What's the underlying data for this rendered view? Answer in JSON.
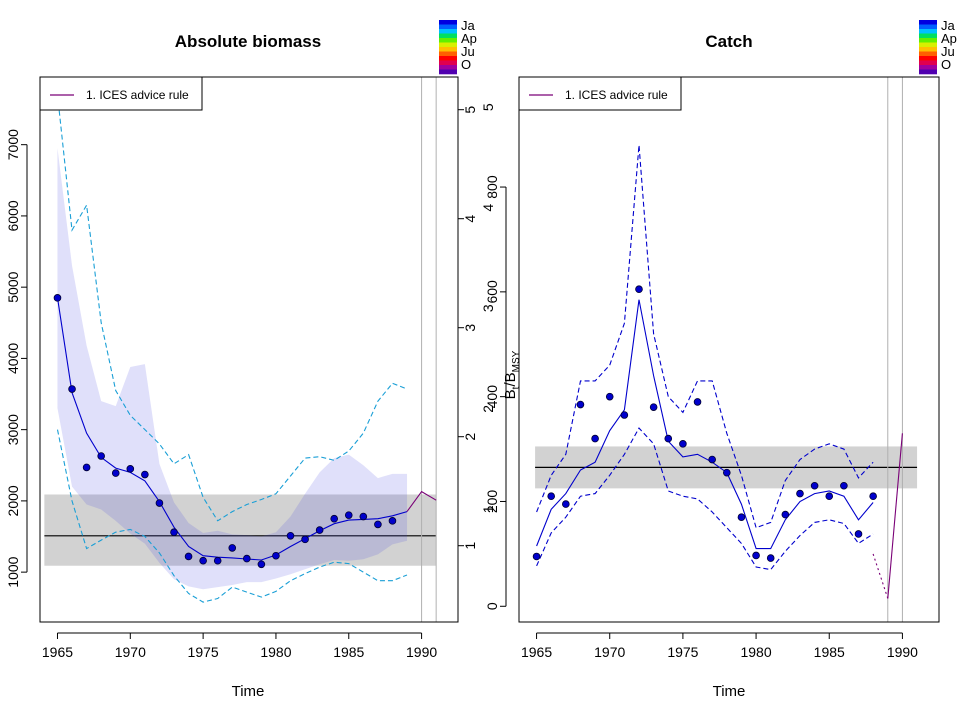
{
  "chart_data": [
    {
      "type": "line",
      "title": "Absolute biomass",
      "xlabel": "Time",
      "ylabel": "",
      "secondary_ylabel": "",
      "xlim": [
        1963.8,
        1992.5
      ],
      "ylim": [
        300,
        7950
      ],
      "secondary_ylim": [
        0.3,
        5.3
      ],
      "x_ticks": [
        1965,
        1970,
        1975,
        1980,
        1985,
        1990
      ],
      "y_ticks": [
        1000,
        2000,
        3000,
        4000,
        5000,
        6000,
        7000
      ],
      "secondary_y_ticks": [
        1,
        2,
        3,
        4,
        5
      ],
      "grid": false,
      "legend": {
        "position": "top-left",
        "entries": [
          {
            "label": "1. ICES advice rule",
            "color": "#7a0077"
          }
        ]
      },
      "reference": {
        "value": 1510,
        "band": [
          1090,
          2090
        ],
        "x_range": [
          1964.1,
          1991.0
        ]
      },
      "vertical_lines": [
        1990,
        1991
      ],
      "observed_x": [
        1965,
        1966,
        1967,
        1968,
        1969,
        1970,
        1971,
        1972,
        1973,
        1974,
        1975,
        1976,
        1977,
        1978,
        1979,
        1980,
        1981,
        1982,
        1983,
        1984,
        1985,
        1986,
        1987,
        1988
      ],
      "observed_y": [
        4850,
        3570,
        2470,
        2630,
        2390,
        2450,
        2370,
        1970,
        1560,
        1220,
        1160,
        1160,
        1340,
        1190,
        1110,
        1230,
        1510,
        1460,
        1590,
        1750,
        1800,
        1780,
        1670,
        1720
      ],
      "series": [
        {
          "name": "",
          "style": "solid",
          "color": "#0000cc",
          "x": [
            1965,
            1966,
            1967,
            1968,
            1969,
            1970,
            1971,
            1972,
            1973,
            1974,
            1975,
            1976,
            1977,
            1978,
            1979,
            1980,
            1981,
            1982,
            1983,
            1984,
            1985,
            1986,
            1987,
            1988,
            1989
          ],
          "values": [
            4850,
            3520,
            2950,
            2610,
            2460,
            2400,
            2280,
            1990,
            1630,
            1360,
            1230,
            1210,
            1200,
            1185,
            1170,
            1240,
            1360,
            1470,
            1580,
            1680,
            1730,
            1740,
            1750,
            1790,
            1850
          ]
        },
        {
          "name": "",
          "style": "solid",
          "color": "#7a0077",
          "x": [
            1989,
            1990,
            1991
          ],
          "values": [
            1850,
            2130,
            2010
          ]
        },
        {
          "name": "",
          "style": "dashed",
          "color": "#1a9fd6",
          "x": [
            1965,
            1966,
            1967,
            1968,
            1969,
            1970,
            1971,
            1972,
            1973,
            1974,
            1975,
            1976,
            1977,
            1978,
            1979,
            1980,
            1981,
            1982,
            1983,
            1984,
            1985,
            1986,
            1987,
            1988,
            1989
          ],
          "values": [
            7700,
            5800,
            6150,
            4500,
            3550,
            3200,
            3000,
            2800,
            2520,
            2650,
            2050,
            1720,
            1850,
            1950,
            2020,
            2100,
            2350,
            2600,
            2620,
            2570,
            2700,
            2950,
            3400,
            3650,
            3570
          ]
        },
        {
          "name": "",
          "style": "dashed",
          "color": "#1a9fd6",
          "x": [
            1965,
            1966,
            1967,
            1968,
            1969,
            1970,
            1971,
            1972,
            1973,
            1974,
            1975,
            1976,
            1977,
            1978,
            1979,
            1980,
            1981,
            1982,
            1983,
            1984,
            1985,
            1986,
            1987,
            1988,
            1989
          ],
          "values": [
            3000,
            2000,
            1330,
            1450,
            1560,
            1600,
            1500,
            1270,
            950,
            700,
            580,
            630,
            790,
            720,
            650,
            730,
            880,
            980,
            1070,
            1140,
            1120,
            1000,
            880,
            880,
            960
          ]
        }
      ],
      "confidence_band": {
        "x": [
          1965,
          1966,
          1967,
          1968,
          1969,
          1970,
          1971,
          1972,
          1973,
          1974,
          1975,
          1976,
          1977,
          1978,
          1979,
          1980,
          1981,
          1982,
          1983,
          1984,
          1985,
          1986,
          1987,
          1988,
          1989
        ],
        "upper": [
          6950,
          5300,
          4180,
          3400,
          3330,
          3880,
          3920,
          2520,
          1980,
          1690,
          1550,
          1580,
          1530,
          1520,
          1500,
          1560,
          1780,
          2100,
          2400,
          2600,
          2650,
          2500,
          2320,
          2380,
          2380
        ],
        "lower": [
          3300,
          2200,
          1950,
          1880,
          1720,
          1540,
          1400,
          1130,
          900,
          800,
          760,
          790,
          820,
          860,
          860,
          910,
          970,
          1040,
          1110,
          1170,
          1160,
          1180,
          1250,
          1390,
          1440
        ]
      }
    },
    {
      "type": "line",
      "title": "Catch",
      "xlabel": "Time",
      "ylabel": "",
      "secondary_ylabel": "",
      "xlim": [
        1963.8,
        1992.5
      ],
      "ylim": [
        -30,
        1010
      ],
      "secondary_ylim": [
        -0.12,
        5.3
      ],
      "x_ticks": [
        1965,
        1970,
        1975,
        1980,
        1985,
        1990
      ],
      "y_ticks": [
        0,
        200,
        400,
        600,
        800
      ],
      "secondary_y_ticks": [
        1,
        2,
        3,
        4,
        5
      ],
      "grid": false,
      "legend": {
        "position": "top-left",
        "entries": [
          {
            "label": "1. ICES advice rule",
            "color": "#7a0077"
          }
        ]
      },
      "reference": {
        "value": 265,
        "band": [
          225,
          305
        ],
        "x_range": [
          1964.9,
          1991.0
        ]
      },
      "vertical_lines": [
        1989,
        1990
      ],
      "observed_x": [
        1965,
        1966,
        1967,
        1968,
        1969,
        1970,
        1971,
        1972,
        1973,
        1974,
        1975,
        1976,
        1977,
        1978,
        1979,
        1980,
        1981,
        1982,
        1983,
        1984,
        1985,
        1986,
        1987,
        1988
      ],
      "observed_y": [
        95,
        210,
        195,
        385,
        320,
        400,
        365,
        605,
        380,
        320,
        310,
        390,
        280,
        255,
        170,
        97,
        92,
        175,
        215,
        230,
        210,
        230,
        138,
        210
      ],
      "series": [
        {
          "name": "",
          "style": "solid",
          "color": "#0000cc",
          "x": [
            1965,
            1966,
            1967,
            1968,
            1969,
            1970,
            1971,
            1972,
            1973,
            1974,
            1975,
            1976,
            1977,
            1978,
            1979,
            1980,
            1981,
            1982,
            1983,
            1984,
            1985,
            1986,
            1987,
            1988
          ],
          "values": [
            115,
            185,
            215,
            260,
            275,
            335,
            375,
            585,
            440,
            315,
            285,
            290,
            275,
            255,
            195,
            110,
            110,
            165,
            200,
            215,
            220,
            210,
            165,
            198
          ]
        },
        {
          "name": "",
          "style": "dashed",
          "color": "#0000cc",
          "x": [
            1965,
            1966,
            1967,
            1968,
            1969,
            1970,
            1971,
            1972,
            1973,
            1974,
            1975,
            1976,
            1977,
            1978,
            1979,
            1980,
            1981,
            1982,
            1983,
            1984,
            1985,
            1986,
            1987,
            1988
          ],
          "values": [
            180,
            250,
            290,
            430,
            430,
            460,
            540,
            880,
            520,
            400,
            370,
            430,
            430,
            330,
            250,
            150,
            160,
            240,
            280,
            300,
            310,
            300,
            245,
            275
          ]
        },
        {
          "name": "",
          "style": "dashed",
          "color": "#0000cc",
          "x": [
            1965,
            1966,
            1967,
            1968,
            1969,
            1970,
            1971,
            1972,
            1973,
            1974,
            1975,
            1976,
            1977,
            1978,
            1979,
            1980,
            1981,
            1982,
            1983,
            1984,
            1985,
            1986,
            1987,
            1988
          ],
          "values": [
            77,
            140,
            170,
            210,
            215,
            250,
            290,
            340,
            310,
            220,
            210,
            205,
            180,
            150,
            120,
            75,
            70,
            105,
            135,
            160,
            165,
            158,
            120,
            138
          ]
        },
        {
          "name": "",
          "style": "dotted",
          "color": "#7a0077",
          "x": [
            1988,
            1989
          ],
          "values": [
            100,
            15
          ]
        },
        {
          "name": "",
          "style": "solid",
          "color": "#7a0077",
          "x": [
            1989,
            1990
          ],
          "values": [
            15,
            330
          ]
        }
      ]
    }
  ],
  "season_legend": {
    "labels": [
      "Ja",
      "Ap",
      "Ju",
      "O"
    ],
    "colors": [
      "#0000e0",
      "#0060ff",
      "#00c0ff",
      "#00e060",
      "#60f000",
      "#d8f000",
      "#ffc000",
      "#ff6000",
      "#ff0000",
      "#e00050",
      "#a000a0",
      "#5000b0"
    ]
  }
}
